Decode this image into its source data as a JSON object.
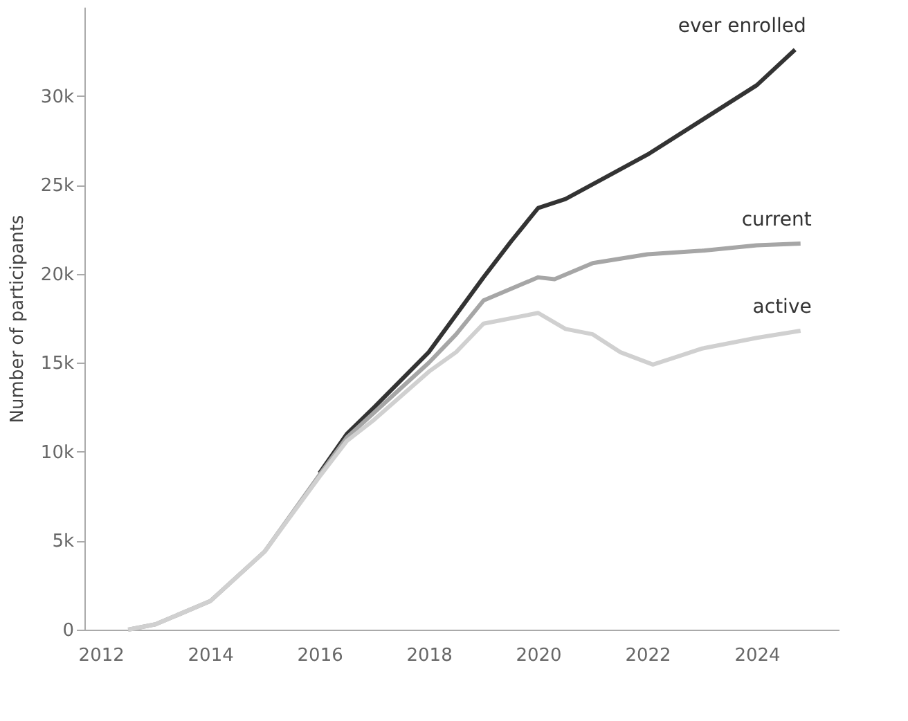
{
  "chart_data": {
    "type": "line",
    "ylabel": "Number of participants",
    "xlim": [
      2011.7,
      2025.5
    ],
    "xticks": [
      2012,
      2014,
      2016,
      2018,
      2020,
      2022,
      2024
    ],
    "ylim": [
      0,
      35000
    ],
    "yticks": [
      0,
      {
        "value": 5000,
        "label": "5k"
      },
      {
        "value": 10000,
        "label": "10k"
      },
      {
        "value": 15000,
        "label": "15k"
      },
      {
        "value": 20000,
        "label": "20k"
      },
      {
        "value": 25000,
        "label": "25k"
      },
      {
        "value": 30000,
        "label": "30k"
      }
    ],
    "grid": false,
    "marker": "none",
    "line_style": "solid",
    "series": [
      {
        "name": "ever enrolled",
        "color": "#333333",
        "x": [
          2016,
          2016.5,
          2017,
          2018,
          2019,
          2019.5,
          2020,
          2020.5,
          2022,
          2024,
          2024.7
        ],
        "values": [
          8800,
          11000,
          12500,
          15600,
          19800,
          21800,
          23700,
          24200,
          26700,
          30600,
          32600
        ]
      },
      {
        "name": "current",
        "color": "#a6a6a6",
        "x": [
          2012.5,
          2013,
          2014,
          2014.5,
          2015,
          2016,
          2016.5,
          2017,
          2018,
          2018.5,
          2019,
          2020,
          2020.3,
          2021,
          2022,
          2023,
          2024,
          2024.8
        ],
        "values": [
          0,
          300,
          1600,
          3000,
          4400,
          8700,
          10800,
          12200,
          15000,
          16600,
          18500,
          19800,
          19700,
          20600,
          21100,
          21300,
          21600,
          21700
        ]
      },
      {
        "name": "active",
        "color": "#d0d0d0",
        "x": [
          2012.5,
          2013,
          2014,
          2014.5,
          2015,
          2016,
          2016.5,
          2017,
          2018,
          2018.5,
          2019,
          2020,
          2020.5,
          2021,
          2021.5,
          2022.1,
          2022.5,
          2023,
          2024,
          2024.8
        ],
        "values": [
          0,
          300,
          1600,
          3000,
          4400,
          8600,
          10600,
          11800,
          14500,
          15600,
          17200,
          17800,
          16900,
          16600,
          15600,
          14900,
          15300,
          15800,
          16400,
          16800
        ]
      }
    ]
  }
}
